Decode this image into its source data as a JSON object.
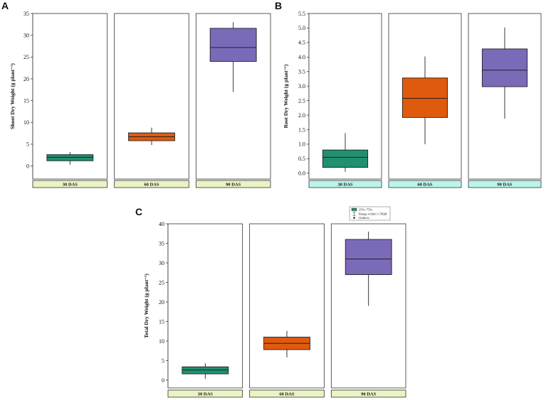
{
  "chart_data": [
    {
      "panel": "A",
      "type": "box",
      "ylabel": "Shoot Dry Weight (g plant⁻¹)",
      "ylim": [
        -3,
        35
      ],
      "yticks": [
        0,
        5,
        10,
        15,
        20,
        25,
        30,
        35
      ],
      "tick_labels": [
        "0",
        "5",
        "10",
        "15",
        "20",
        "25",
        "30",
        "35"
      ],
      "categories": [
        "30 DAS",
        "60 DAS",
        "90 DAS"
      ],
      "boxes": [
        {
          "min": 0.3,
          "q1": 1.2,
          "median": 2.0,
          "q3": 2.6,
          "max": 3.2,
          "color": "#1f9070"
        },
        {
          "min": 4.8,
          "q1": 5.8,
          "median": 6.7,
          "q3": 7.6,
          "max": 8.8,
          "color": "#e05a0e"
        },
        {
          "min": 17.0,
          "q1": 24.0,
          "median": 27.2,
          "q3": 31.6,
          "max": 33.0,
          "color": "#7b6ab8"
        }
      ],
      "label_fill": "#e8f4c4"
    },
    {
      "panel": "B",
      "type": "box",
      "ylabel": "Root Dry Weight (g plant⁻¹)",
      "ylim": [
        -0.2,
        5.5
      ],
      "yticks": [
        0.0,
        0.5,
        1.0,
        1.5,
        2.0,
        2.5,
        3.0,
        3.5,
        4.0,
        4.5,
        5.0,
        5.5
      ],
      "tick_labels": [
        "0.0",
        "0.5",
        "1.0",
        "1.5",
        "2.0",
        "2.5",
        "3.0",
        "3.5",
        "4.0",
        "4.5",
        "5.0",
        "5.5"
      ],
      "categories": [
        "30 DAS",
        "60 DAS",
        "90 DAS"
      ],
      "boxes": [
        {
          "min": 0.05,
          "q1": 0.2,
          "median": 0.55,
          "q3": 0.8,
          "max": 1.38,
          "color": "#1f9070"
        },
        {
          "min": 1.0,
          "q1": 1.92,
          "median": 2.58,
          "q3": 3.28,
          "max": 4.02,
          "color": "#e05a0e"
        },
        {
          "min": 1.88,
          "q1": 2.98,
          "median": 3.55,
          "q3": 4.28,
          "max": 5.02,
          "color": "#7b6ab8"
        }
      ],
      "label_fill": "#b9f5e8"
    },
    {
      "panel": "C",
      "type": "box",
      "ylabel": "Total Dry Weight (g plant⁻¹)",
      "ylim": [
        -2,
        40
      ],
      "yticks": [
        0,
        5,
        10,
        15,
        20,
        25,
        30,
        35,
        40
      ],
      "tick_labels": [
        "0",
        "5",
        "10",
        "15",
        "20",
        "25",
        "30",
        "35",
        "40"
      ],
      "categories": [
        "30 DAS",
        "60 DAS",
        "90 DAS"
      ],
      "boxes": [
        {
          "min": 0.3,
          "q1": 1.6,
          "median": 2.6,
          "q3": 3.4,
          "max": 4.3,
          "color": "#1f9070"
        },
        {
          "min": 5.8,
          "q1": 7.8,
          "median": 9.4,
          "q3": 11.0,
          "max": 12.6,
          "color": "#e05a0e"
        },
        {
          "min": 19.0,
          "q1": 27.0,
          "median": 31.0,
          "q3": 36.0,
          "max": 38.0,
          "color": "#7b6ab8"
        }
      ],
      "label_fill": "#e8f4c4",
      "legend": [
        "25%~75%",
        "Range within 1.5IQR",
        "Outliers"
      ]
    }
  ]
}
